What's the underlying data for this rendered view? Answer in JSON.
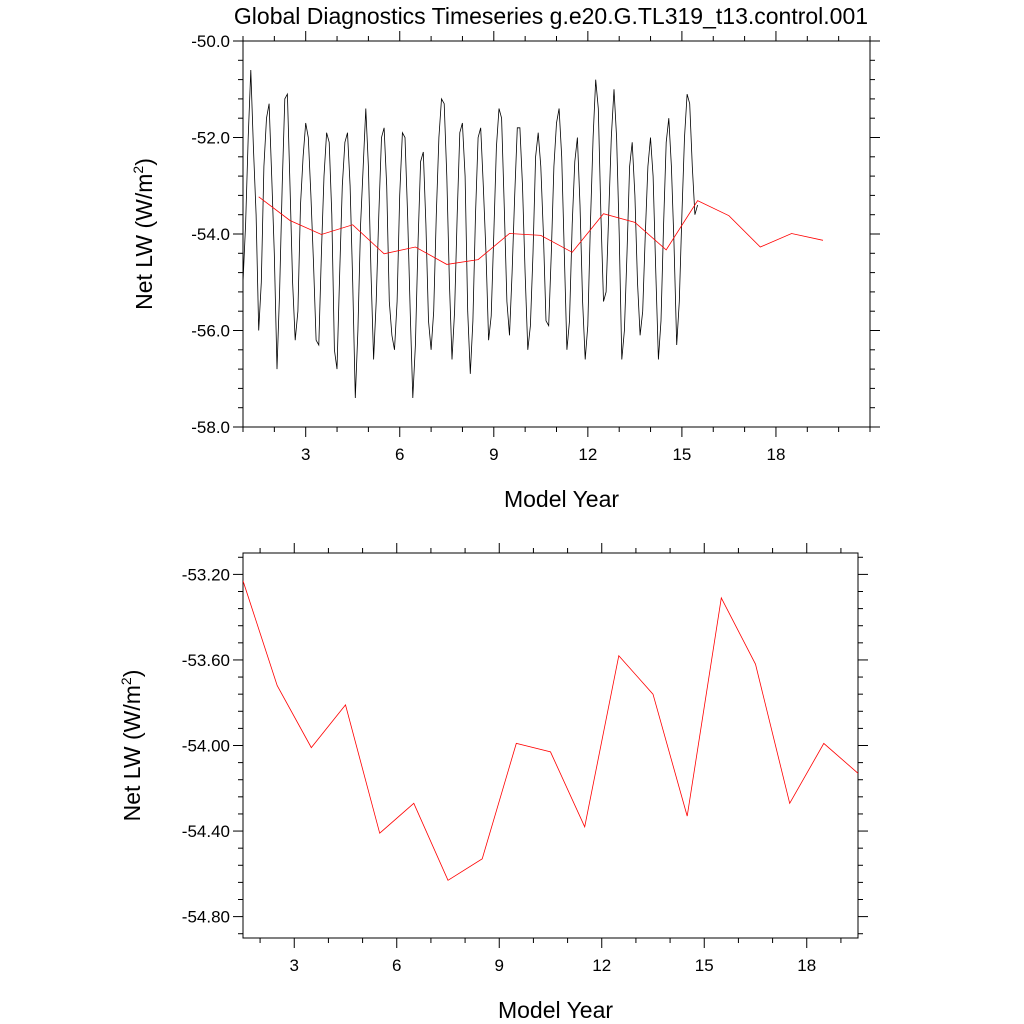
{
  "title": "Global Diagnostics Timeseries g.e20.G.TL319_t13.control.001",
  "colors": {
    "monthly": "#000000",
    "annual": "#ff0000",
    "axis": "#000000"
  },
  "chart_data": [
    {
      "type": "line",
      "title": "Global Diagnostics Timeseries g.e20.G.TL319_t13.control.001",
      "xlabel": "Model Year",
      "ylabel": "Net LW (W/m",
      "ylabel_sup": "2",
      "ylabel_close": ")",
      "xlim": [
        1.0,
        21.0
      ],
      "ylim": [
        -58.0,
        -50.0
      ],
      "xticks": [
        3,
        6,
        9,
        12,
        15,
        18
      ],
      "yticks": [
        -50.0,
        -52.0,
        -54.0,
        -56.0,
        -58.0
      ],
      "ytick_labels": [
        "-50.0",
        "-52.0",
        "-54.0",
        "-56.0",
        "-58.0"
      ],
      "series": [
        {
          "name": "monthly",
          "color": "#000000",
          "x_start": 1.0,
          "x_step": 0.08333,
          "values": [
            -55.0,
            -53.8,
            -52.0,
            -50.6,
            -52.2,
            -53.6,
            -56.0,
            -55.0,
            -52.6,
            -51.6,
            -51.3,
            -52.8,
            -54.4,
            -56.8,
            -55.2,
            -53.0,
            -51.2,
            -51.1,
            -53.0,
            -55.0,
            -56.2,
            -55.6,
            -53.4,
            -52.4,
            -51.7,
            -52.0,
            -53.2,
            -54.6,
            -56.2,
            -56.3,
            -54.4,
            -52.8,
            -51.9,
            -52.1,
            -53.6,
            -56.4,
            -56.8,
            -54.8,
            -53.0,
            -52.1,
            -51.9,
            -53.0,
            -55.0,
            -57.4,
            -56.0,
            -53.8,
            -52.6,
            -51.4,
            -52.6,
            -54.8,
            -56.6,
            -55.4,
            -53.6,
            -52.0,
            -51.8,
            -53.0,
            -55.4,
            -56.1,
            -56.4,
            -55.4,
            -53.2,
            -51.9,
            -52.0,
            -53.6,
            -55.6,
            -57.4,
            -56.3,
            -54.2,
            -52.5,
            -52.3,
            -53.8,
            -55.8,
            -56.4,
            -55.6,
            -53.6,
            -52.0,
            -51.2,
            -51.3,
            -52.8,
            -55.0,
            -56.6,
            -55.6,
            -53.6,
            -51.9,
            -51.7,
            -52.8,
            -55.6,
            -56.9,
            -55.8,
            -53.6,
            -52.0,
            -51.8,
            -53.0,
            -54.4,
            -56.2,
            -55.7,
            -54.0,
            -52.2,
            -51.4,
            -51.6,
            -53.4,
            -55.4,
            -56.1,
            -54.8,
            -53.2,
            -51.8,
            -51.8,
            -53.0,
            -54.8,
            -56.4,
            -55.9,
            -54.4,
            -52.4,
            -51.9,
            -52.6,
            -54.0,
            -55.8,
            -55.9,
            -54.4,
            -52.6,
            -51.7,
            -51.4,
            -52.4,
            -54.4,
            -56.4,
            -55.8,
            -53.8,
            -52.5,
            -52.0,
            -53.4,
            -55.4,
            -56.6,
            -55.9,
            -53.8,
            -52.0,
            -50.8,
            -51.4,
            -53.6,
            -55.4,
            -55.2,
            -53.6,
            -52.0,
            -51.0,
            -52.0,
            -54.0,
            -56.6,
            -56.0,
            -54.4,
            -52.6,
            -52.1,
            -53.2,
            -55.0,
            -56.1,
            -55.6,
            -54.0,
            -52.6,
            -52.0,
            -52.8,
            -54.8,
            -56.6,
            -55.8,
            -53.8,
            -52.1,
            -51.6,
            -52.6,
            -54.2,
            -56.3,
            -55.4,
            -53.6,
            -52.0,
            -51.1,
            -51.3,
            -52.6,
            -53.6,
            -53.4
          ]
        },
        {
          "name": "annual",
          "color": "#ff0000",
          "x": [
            1.5,
            2.5,
            3.5,
            4.5,
            5.5,
            6.5,
            7.5,
            8.5,
            9.5,
            10.5,
            11.5,
            12.5,
            13.5,
            14.5,
            15.5,
            16.5,
            17.5,
            18.5,
            19.5
          ],
          "values": [
            -53.23,
            -53.72,
            -54.01,
            -53.81,
            -54.41,
            -54.27,
            -54.63,
            -54.53,
            -53.99,
            -54.03,
            -54.38,
            -53.58,
            -53.76,
            -54.33,
            -53.31,
            -53.62,
            -54.27,
            -53.99,
            -54.13
          ]
        }
      ]
    },
    {
      "type": "line",
      "xlabel": "Model Year",
      "ylabel": "Net LW (W/m",
      "ylabel_sup": "2",
      "ylabel_close": ")",
      "xlim": [
        1.5,
        19.5
      ],
      "ylim": [
        -54.9,
        -53.1
      ],
      "xticks": [
        3,
        6,
        9,
        12,
        15,
        18
      ],
      "yticks": [
        -53.2,
        -53.6,
        -54.0,
        -54.4,
        -54.8
      ],
      "ytick_labels": [
        "-53.20",
        "-53.60",
        "-54.00",
        "-54.40",
        "-54.80"
      ],
      "series": [
        {
          "name": "annual",
          "color": "#ff0000",
          "x": [
            1.5,
            2.5,
            3.5,
            4.5,
            5.5,
            6.5,
            7.5,
            8.5,
            9.5,
            10.5,
            11.5,
            12.5,
            13.5,
            14.5,
            15.5,
            16.5,
            17.5,
            18.5,
            19.5
          ],
          "values": [
            -53.23,
            -53.72,
            -54.01,
            -53.81,
            -54.41,
            -54.27,
            -54.63,
            -54.53,
            -53.99,
            -54.03,
            -54.38,
            -53.58,
            -53.76,
            -54.33,
            -53.31,
            -53.62,
            -54.27,
            -53.99,
            -54.13
          ]
        }
      ]
    }
  ]
}
